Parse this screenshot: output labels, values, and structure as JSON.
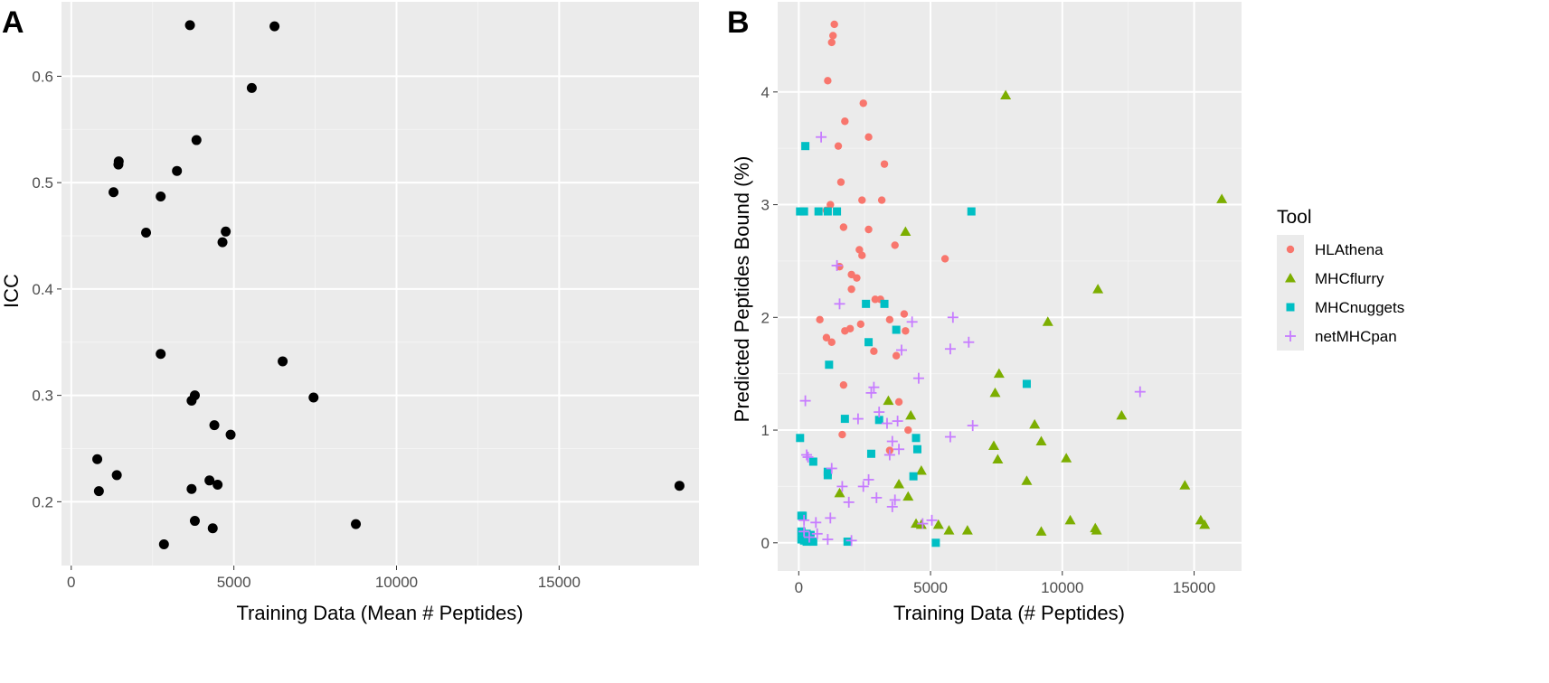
{
  "panel_a": {
    "letter": "A"
  },
  "panel_b": {
    "letter": "B"
  },
  "chart_data": [
    {
      "type": "scatter",
      "title": "",
      "xlabel": "Training Data (Mean # Peptides)",
      "ylabel": "ICC",
      "xlim": [
        -300,
        19300
      ],
      "ylim": [
        0.14,
        0.67
      ],
      "xticks": [
        0,
        5000,
        10000,
        15000
      ],
      "xtick_labels": [
        "0",
        "5000",
        "10000",
        "15000"
      ],
      "yticks": [
        0.2,
        0.3,
        0.4,
        0.5,
        0.6
      ],
      "ytick_labels": [
        "0.2",
        "0.3",
        "0.4",
        "0.5",
        "0.6"
      ],
      "grid": true,
      "color": "#000000",
      "points": [
        {
          "x": 3650,
          "y": 0.648
        },
        {
          "x": 6250,
          "y": 0.647
        },
        {
          "x": 5550,
          "y": 0.589
        },
        {
          "x": 3850,
          "y": 0.54
        },
        {
          "x": 1460,
          "y": 0.52
        },
        {
          "x": 1450,
          "y": 0.517
        },
        {
          "x": 3250,
          "y": 0.511
        },
        {
          "x": 1300,
          "y": 0.491
        },
        {
          "x": 2750,
          "y": 0.487
        },
        {
          "x": 2300,
          "y": 0.453
        },
        {
          "x": 4750,
          "y": 0.454
        },
        {
          "x": 4650,
          "y": 0.444
        },
        {
          "x": 2750,
          "y": 0.339
        },
        {
          "x": 6500,
          "y": 0.332
        },
        {
          "x": 3800,
          "y": 0.3
        },
        {
          "x": 7450,
          "y": 0.298
        },
        {
          "x": 3700,
          "y": 0.295
        },
        {
          "x": 4400,
          "y": 0.272
        },
        {
          "x": 4900,
          "y": 0.263
        },
        {
          "x": 800,
          "y": 0.24
        },
        {
          "x": 1400,
          "y": 0.225
        },
        {
          "x": 4250,
          "y": 0.22
        },
        {
          "x": 4500,
          "y": 0.216
        },
        {
          "x": 18700,
          "y": 0.215
        },
        {
          "x": 3700,
          "y": 0.212
        },
        {
          "x": 850,
          "y": 0.21
        },
        {
          "x": 3800,
          "y": 0.182
        },
        {
          "x": 8750,
          "y": 0.179
        },
        {
          "x": 4350,
          "y": 0.175
        },
        {
          "x": 2850,
          "y": 0.16
        }
      ]
    },
    {
      "type": "scatter",
      "title": "",
      "xlabel": "Training Data (# Peptides)",
      "ylabel": "Predicted Peptides Bound (%)",
      "xlim": [
        -800,
        16800
      ],
      "ylim": [
        -0.25,
        4.8
      ],
      "xticks": [
        0,
        5000,
        10000,
        15000
      ],
      "xtick_labels": [
        "0",
        "5000",
        "10000",
        "15000"
      ],
      "yticks": [
        0,
        1,
        2,
        3,
        4
      ],
      "ytick_labels": [
        "0",
        "1",
        "2",
        "3",
        "4"
      ],
      "grid": true,
      "legend": {
        "title": "Tool",
        "position": "right"
      },
      "series": [
        {
          "name": "HLAthena",
          "color": "#F8766D",
          "marker": "circle",
          "points": [
            {
              "x": 1350,
              "y": 4.6
            },
            {
              "x": 1300,
              "y": 4.5
            },
            {
              "x": 1250,
              "y": 4.44
            },
            {
              "x": 1100,
              "y": 4.1
            },
            {
              "x": 2450,
              "y": 3.9
            },
            {
              "x": 1750,
              "y": 3.74
            },
            {
              "x": 2650,
              "y": 3.6
            },
            {
              "x": 1500,
              "y": 3.52
            },
            {
              "x": 3250,
              "y": 3.36
            },
            {
              "x": 1600,
              "y": 3.2
            },
            {
              "x": 1200,
              "y": 3.0
            },
            {
              "x": 1050,
              "y": 2.95
            },
            {
              "x": 2400,
              "y": 3.04
            },
            {
              "x": 3150,
              "y": 3.04
            },
            {
              "x": 1700,
              "y": 2.8
            },
            {
              "x": 2650,
              "y": 2.78
            },
            {
              "x": 3650,
              "y": 2.64
            },
            {
              "x": 2300,
              "y": 2.6
            },
            {
              "x": 2400,
              "y": 2.55
            },
            {
              "x": 5550,
              "y": 2.52
            },
            {
              "x": 1550,
              "y": 2.45
            },
            {
              "x": 2000,
              "y": 2.38
            },
            {
              "x": 2200,
              "y": 2.35
            },
            {
              "x": 2000,
              "y": 2.25
            },
            {
              "x": 2900,
              "y": 2.16
            },
            {
              "x": 3100,
              "y": 2.16
            },
            {
              "x": 4000,
              "y": 2.03
            },
            {
              "x": 800,
              "y": 1.98
            },
            {
              "x": 3450,
              "y": 1.98
            },
            {
              "x": 2350,
              "y": 1.94
            },
            {
              "x": 1950,
              "y": 1.9
            },
            {
              "x": 1750,
              "y": 1.88
            },
            {
              "x": 4050,
              "y": 1.88
            },
            {
              "x": 1050,
              "y": 1.82
            },
            {
              "x": 1250,
              "y": 1.78
            },
            {
              "x": 2850,
              "y": 1.7
            },
            {
              "x": 3700,
              "y": 1.66
            },
            {
              "x": 1700,
              "y": 1.4
            },
            {
              "x": 3800,
              "y": 1.25
            },
            {
              "x": 4150,
              "y": 1.0
            },
            {
              "x": 1650,
              "y": 0.96
            },
            {
              "x": 3450,
              "y": 0.82
            }
          ]
        },
        {
          "name": "MHCflurry",
          "color": "#7CAE00",
          "marker": "triangle",
          "points": [
            {
              "x": 7850,
              "y": 3.97
            },
            {
              "x": 16050,
              "y": 3.05
            },
            {
              "x": 4050,
              "y": 2.76
            },
            {
              "x": 11350,
              "y": 2.25
            },
            {
              "x": 9450,
              "y": 1.96
            },
            {
              "x": 7600,
              "y": 1.5
            },
            {
              "x": 7450,
              "y": 1.33
            },
            {
              "x": 3400,
              "y": 1.26
            },
            {
              "x": 12250,
              "y": 1.13
            },
            {
              "x": 4250,
              "y": 1.13
            },
            {
              "x": 8950,
              "y": 1.05
            },
            {
              "x": 9200,
              "y": 0.9
            },
            {
              "x": 7400,
              "y": 0.86
            },
            {
              "x": 10150,
              "y": 0.75
            },
            {
              "x": 7550,
              "y": 0.74
            },
            {
              "x": 4650,
              "y": 0.64
            },
            {
              "x": 8650,
              "y": 0.55
            },
            {
              "x": 14650,
              "y": 0.51
            },
            {
              "x": 3800,
              "y": 0.52
            },
            {
              "x": 1550,
              "y": 0.44
            },
            {
              "x": 4150,
              "y": 0.41
            },
            {
              "x": 15250,
              "y": 0.2
            },
            {
              "x": 10300,
              "y": 0.2
            },
            {
              "x": 15400,
              "y": 0.16
            },
            {
              "x": 4450,
              "y": 0.17
            },
            {
              "x": 4650,
              "y": 0.16
            },
            {
              "x": 5300,
              "y": 0.16
            },
            {
              "x": 11250,
              "y": 0.13
            },
            {
              "x": 11300,
              "y": 0.11
            },
            {
              "x": 5700,
              "y": 0.11
            },
            {
              "x": 6400,
              "y": 0.11
            },
            {
              "x": 9200,
              "y": 0.1
            }
          ]
        },
        {
          "name": "MHCnuggets",
          "color": "#00BFC4",
          "marker": "square",
          "points": [
            {
              "x": 250,
              "y": 3.52
            },
            {
              "x": 50,
              "y": 2.94
            },
            {
              "x": 200,
              "y": 2.94
            },
            {
              "x": 750,
              "y": 2.94
            },
            {
              "x": 1100,
              "y": 2.94
            },
            {
              "x": 1450,
              "y": 2.94
            },
            {
              "x": 6550,
              "y": 2.94
            },
            {
              "x": 2550,
              "y": 2.12
            },
            {
              "x": 3250,
              "y": 2.12
            },
            {
              "x": 3700,
              "y": 1.89
            },
            {
              "x": 2650,
              "y": 1.78
            },
            {
              "x": 1150,
              "y": 1.58
            },
            {
              "x": 8650,
              "y": 1.41
            },
            {
              "x": 1750,
              "y": 1.1
            },
            {
              "x": 3050,
              "y": 1.09
            },
            {
              "x": 50,
              "y": 0.93
            },
            {
              "x": 4450,
              "y": 0.93
            },
            {
              "x": 4500,
              "y": 0.83
            },
            {
              "x": 2750,
              "y": 0.79
            },
            {
              "x": 550,
              "y": 0.72
            },
            {
              "x": 1100,
              "y": 0.63
            },
            {
              "x": 1100,
              "y": 0.6
            },
            {
              "x": 4350,
              "y": 0.59
            },
            {
              "x": 100,
              "y": 0.24
            },
            {
              "x": 150,
              "y": 0.24
            },
            {
              "x": 100,
              "y": 0.1
            },
            {
              "x": 300,
              "y": 0.08
            },
            {
              "x": 450,
              "y": 0.07
            },
            {
              "x": 100,
              "y": 0.03
            },
            {
              "x": 200,
              "y": 0.02
            },
            {
              "x": 300,
              "y": 0.01
            },
            {
              "x": 550,
              "y": 0.01
            },
            {
              "x": 1850,
              "y": 0.01
            },
            {
              "x": 5200,
              "y": 0.0
            }
          ]
        },
        {
          "name": "netMHCpan",
          "color": "#C77CFF",
          "marker": "plus",
          "points": [
            {
              "x": 850,
              "y": 3.6
            },
            {
              "x": 1450,
              "y": 2.46
            },
            {
              "x": 1550,
              "y": 2.12
            },
            {
              "x": 5850,
              "y": 2.0
            },
            {
              "x": 4300,
              "y": 1.96
            },
            {
              "x": 6450,
              "y": 1.78
            },
            {
              "x": 5750,
              "y": 1.72
            },
            {
              "x": 3900,
              "y": 1.71
            },
            {
              "x": 12950,
              "y": 1.34
            },
            {
              "x": 2850,
              "y": 1.38
            },
            {
              "x": 2750,
              "y": 1.33
            },
            {
              "x": 4550,
              "y": 1.46
            },
            {
              "x": 250,
              "y": 1.26
            },
            {
              "x": 3050,
              "y": 1.16
            },
            {
              "x": 2250,
              "y": 1.1
            },
            {
              "x": 3350,
              "y": 1.06
            },
            {
              "x": 3750,
              "y": 1.08
            },
            {
              "x": 6600,
              "y": 1.04
            },
            {
              "x": 5750,
              "y": 0.94
            },
            {
              "x": 3550,
              "y": 0.9
            },
            {
              "x": 3800,
              "y": 0.83
            },
            {
              "x": 3450,
              "y": 0.78
            },
            {
              "x": 300,
              "y": 0.78
            },
            {
              "x": 350,
              "y": 0.76
            },
            {
              "x": 1250,
              "y": 0.66
            },
            {
              "x": 2650,
              "y": 0.56
            },
            {
              "x": 2450,
              "y": 0.5
            },
            {
              "x": 1650,
              "y": 0.5
            },
            {
              "x": 2950,
              "y": 0.4
            },
            {
              "x": 3650,
              "y": 0.38
            },
            {
              "x": 1900,
              "y": 0.36
            },
            {
              "x": 3550,
              "y": 0.32
            },
            {
              "x": 1200,
              "y": 0.22
            },
            {
              "x": 5050,
              "y": 0.2
            },
            {
              "x": 4700,
              "y": 0.17
            },
            {
              "x": 650,
              "y": 0.18
            },
            {
              "x": 200,
              "y": 0.2
            },
            {
              "x": 200,
              "y": 0.1
            },
            {
              "x": 400,
              "y": 0.05
            },
            {
              "x": 1100,
              "y": 0.03
            },
            {
              "x": 2000,
              "y": 0.02
            },
            {
              "x": 700,
              "y": 0.08
            }
          ]
        }
      ]
    }
  ]
}
